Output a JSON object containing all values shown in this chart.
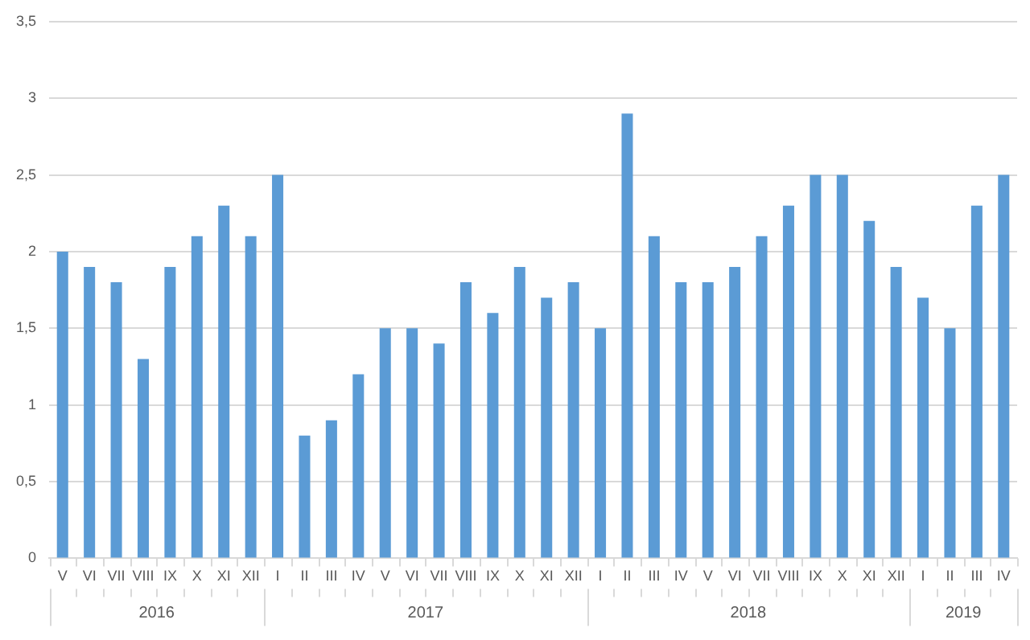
{
  "chart_data": {
    "type": "bar",
    "categories": [
      "V",
      "VI",
      "VII",
      "VIII",
      "IX",
      "X",
      "XI",
      "XII",
      "I",
      "II",
      "III",
      "IV",
      "V",
      "VI",
      "VII",
      "VIII",
      "IX",
      "X",
      "XI",
      "XII",
      "I",
      "II",
      "III",
      "IV",
      "V",
      "VI",
      "VII",
      "VIII",
      "IX",
      "X",
      "XI",
      "XII",
      "I",
      "II",
      "III",
      "IV"
    ],
    "values": [
      2.0,
      1.9,
      1.8,
      1.3,
      1.9,
      2.1,
      2.3,
      2.1,
      2.5,
      0.8,
      0.9,
      1.2,
      1.5,
      1.5,
      1.4,
      1.8,
      1.6,
      1.9,
      1.7,
      1.8,
      1.5,
      2.9,
      2.1,
      1.8,
      1.8,
      1.9,
      2.1,
      2.3,
      2.5,
      2.5,
      2.2,
      1.9,
      1.7,
      1.5,
      2.3,
      2.5
    ],
    "color": "#5b9bd5",
    "ylim": [
      0,
      3.5
    ],
    "yticks": [
      0,
      {
        "value": 0.5,
        "label": "0,5"
      },
      1,
      {
        "value": 1.5,
        "label": "1,5"
      },
      2,
      {
        "value": 2.5,
        "label": "2,5"
      },
      3,
      {
        "value": 3.5,
        "label": "3,5"
      }
    ],
    "grid": "y",
    "annotations": [
      "2016",
      "2017",
      "2018",
      "2019"
    ]
  }
}
